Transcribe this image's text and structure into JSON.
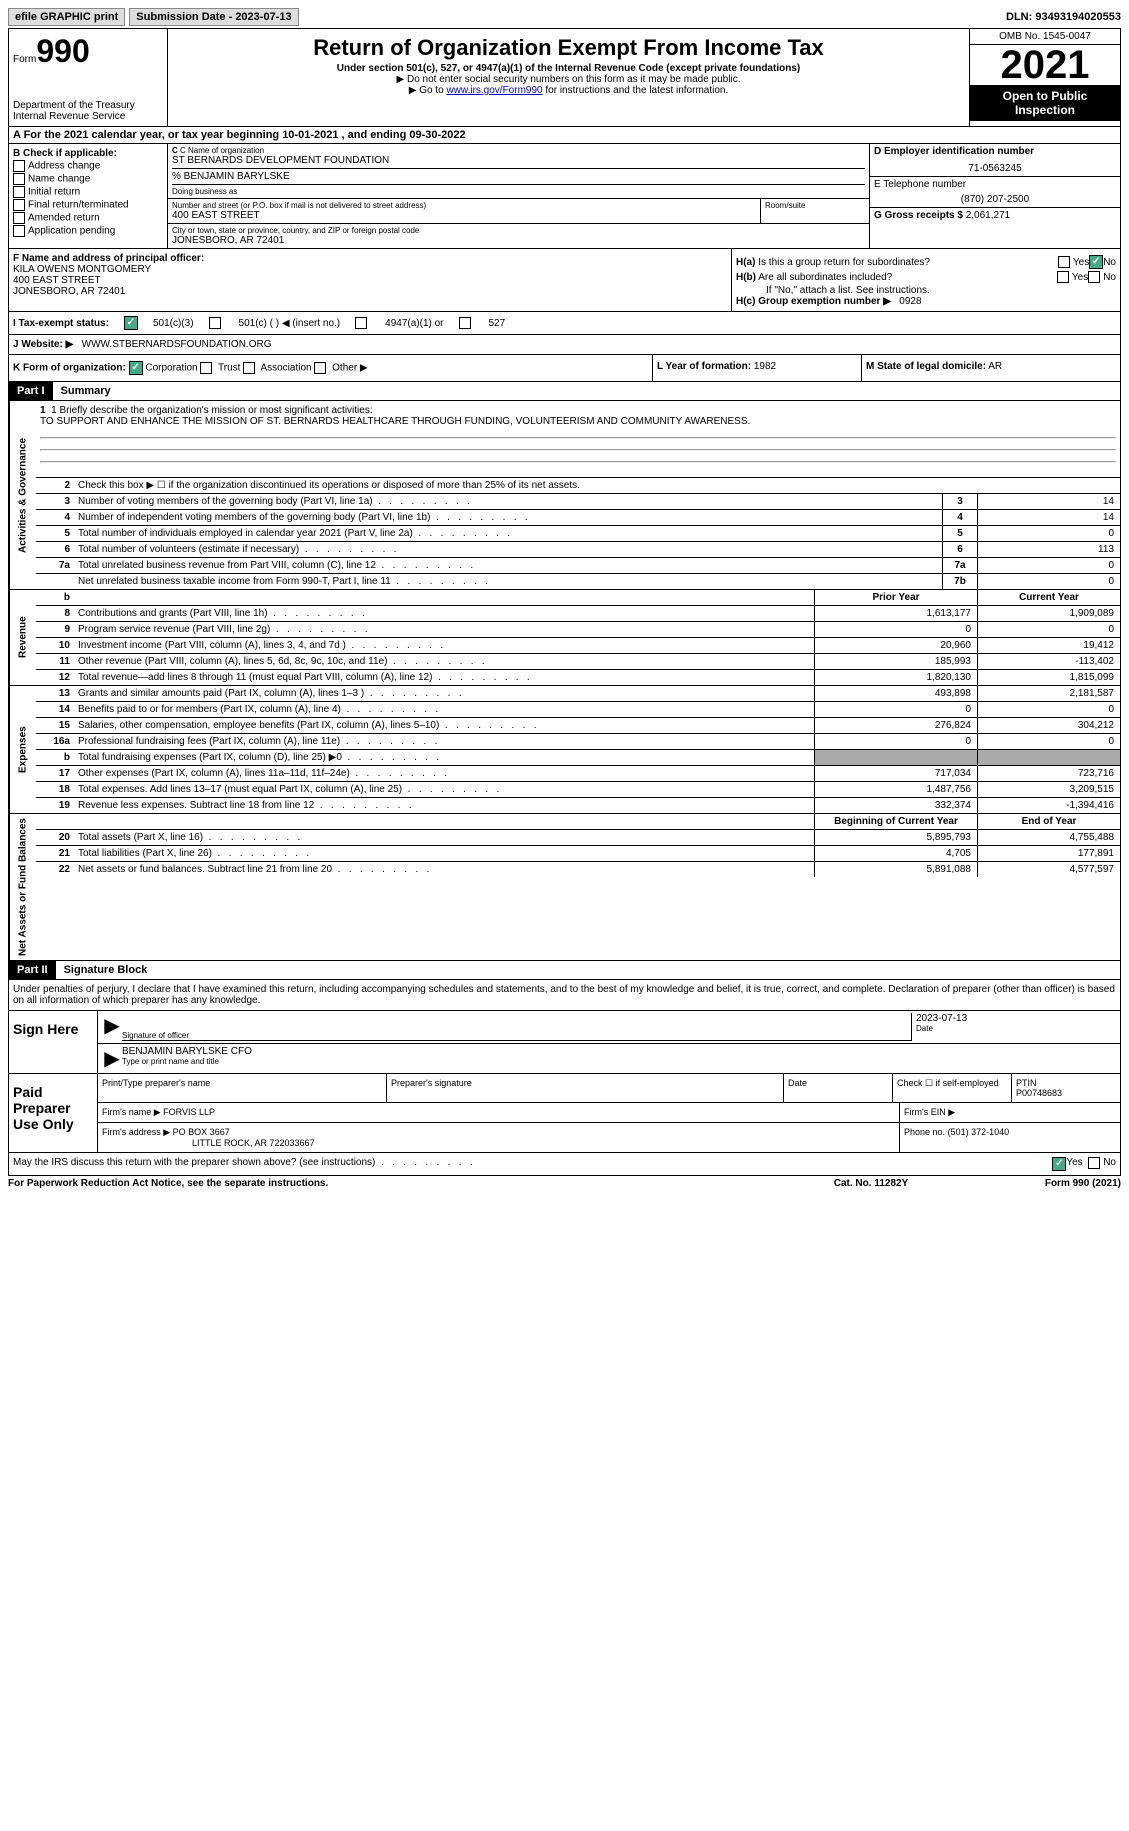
{
  "topbar": {
    "efile": "efile GRAPHIC print",
    "submission_label": "Submission Date - 2023-07-13",
    "dln": "DLN: 93493194020553"
  },
  "header": {
    "form_prefix": "Form",
    "form_num": "990",
    "dept": "Department of the Treasury\nInternal Revenue Service",
    "title": "Return of Organization Exempt From Income Tax",
    "subtitle": "Under section 501(c), 527, or 4947(a)(1) of the Internal Revenue Code (except private foundations)",
    "instr1": "▶ Do not enter social security numbers on this form as it may be made public.",
    "instr2_pre": "▶ Go to ",
    "instr2_link": "www.irs.gov/Form990",
    "instr2_post": " for instructions and the latest information.",
    "omb": "OMB No. 1545-0047",
    "year": "2021",
    "open_pub": "Open to Public Inspection"
  },
  "section_a": "A For the 2021 calendar year, or tax year beginning 10-01-2021    , and ending 09-30-2022",
  "box_b": {
    "label": "B Check if applicable:",
    "items": [
      "Address change",
      "Name change",
      "Initial return",
      "Final return/terminated",
      "Amended return",
      "Application pending"
    ]
  },
  "box_c": {
    "name_lab": "C Name of organization",
    "name": "ST BERNARDS DEVELOPMENT FOUNDATION",
    "care_of": "% BENJAMIN BARYLSKE",
    "dba_lab": "Doing business as",
    "addr_lab": "Number and street (or P.O. box if mail is not delivered to street address)",
    "addr": "400 EAST STREET",
    "room_lab": "Room/suite",
    "city_lab": "City or town, state or province, country, and ZIP or foreign postal code",
    "city": "JONESBORO, AR  72401"
  },
  "box_d": {
    "ein_lab": "D Employer identification number",
    "ein": "71-0563245",
    "phone_lab": "E Telephone number",
    "phone": "(870) 207-2500",
    "gross_lab": "G Gross receipts $",
    "gross": "2,061,271"
  },
  "box_f": {
    "lab": "F Name and address of principal officer:",
    "name": "KILA OWENS MONTGOMERY",
    "addr1": "400 EAST STREET",
    "addr2": "JONESBORO, AR  72401"
  },
  "box_h": {
    "ha": "H(a)  Is this a group return for subordinates?",
    "hb": "H(b)  Are all subordinates included?",
    "hb_note": "If \"No,\" attach a list. See instructions.",
    "hc": "H(c)  Group exemption number ▶",
    "hc_val": "0928",
    "yes": "Yes",
    "no": "No"
  },
  "box_i": {
    "lab": "I Tax-exempt status:",
    "opt1": "501(c)(3)",
    "opt2": "501(c) (  ) ◀ (insert no.)",
    "opt3": "4947(a)(1) or",
    "opt4": "527"
  },
  "box_j": {
    "lab": "J Website: ▶",
    "val": "WWW.STBERNARDSFOUNDATION.ORG"
  },
  "box_k": {
    "lab": "K Form of organization:",
    "opts": [
      "Corporation",
      "Trust",
      "Association",
      "Other ▶"
    ],
    "l_lab": "L Year of formation:",
    "l_val": "1982",
    "m_lab": "M State of legal domicile:",
    "m_val": "AR"
  },
  "part1": {
    "header": "Part I",
    "title": "Summary",
    "line1_lab": "1  Briefly describe the organization's mission or most significant activities:",
    "line1_val": "TO SUPPORT AND ENHANCE THE MISSION OF ST. BERNARDS HEALTHCARE THROUGH FUNDING, VOLUNTEERISM AND COMMUNITY AWARENESS.",
    "line2": "Check this box ▶ ☐ if the organization discontinued its operations or disposed of more than 25% of its net assets.",
    "governance": "Activities & Governance",
    "revenue": "Revenue",
    "expenses": "Expenses",
    "net": "Net Assets or Fund Balances",
    "prior": "Prior Year",
    "current": "Current Year",
    "beginning": "Beginning of Current Year",
    "end": "End of Year",
    "rows_gov": [
      {
        "n": "3",
        "d": "Number of voting members of the governing body (Part VI, line 1a)",
        "b": "3",
        "v": "14"
      },
      {
        "n": "4",
        "d": "Number of independent voting members of the governing body (Part VI, line 1b)",
        "b": "4",
        "v": "14"
      },
      {
        "n": "5",
        "d": "Total number of individuals employed in calendar year 2021 (Part V, line 2a)",
        "b": "5",
        "v": "0"
      },
      {
        "n": "6",
        "d": "Total number of volunteers (estimate if necessary)",
        "b": "6",
        "v": "113"
      },
      {
        "n": "7a",
        "d": "Total unrelated business revenue from Part VIII, column (C), line 12",
        "b": "7a",
        "v": "0"
      },
      {
        "n": "",
        "d": "Net unrelated business taxable income from Form 990-T, Part I, line 11",
        "b": "7b",
        "v": "0"
      }
    ],
    "rows_rev": [
      {
        "n": "8",
        "d": "Contributions and grants (Part VIII, line 1h)",
        "p": "1,613,177",
        "c": "1,909,089"
      },
      {
        "n": "9",
        "d": "Program service revenue (Part VIII, line 2g)",
        "p": "0",
        "c": "0"
      },
      {
        "n": "10",
        "d": "Investment income (Part VIII, column (A), lines 3, 4, and 7d )",
        "p": "20,960",
        "c": "19,412"
      },
      {
        "n": "11",
        "d": "Other revenue (Part VIII, column (A), lines 5, 6d, 8c, 9c, 10c, and 11e)",
        "p": "185,993",
        "c": "-113,402"
      },
      {
        "n": "12",
        "d": "Total revenue—add lines 8 through 11 (must equal Part VIII, column (A), line 12)",
        "p": "1,820,130",
        "c": "1,815,099"
      }
    ],
    "rows_exp": [
      {
        "n": "13",
        "d": "Grants and similar amounts paid (Part IX, column (A), lines 1–3 )",
        "p": "493,898",
        "c": "2,181,587"
      },
      {
        "n": "14",
        "d": "Benefits paid to or for members (Part IX, column (A), line 4)",
        "p": "0",
        "c": "0"
      },
      {
        "n": "15",
        "d": "Salaries, other compensation, employee benefits (Part IX, column (A), lines 5–10)",
        "p": "276,824",
        "c": "304,212"
      },
      {
        "n": "16a",
        "d": "Professional fundraising fees (Part IX, column (A), line 11e)",
        "p": "0",
        "c": "0"
      },
      {
        "n": "b",
        "d": "Total fundraising expenses (Part IX, column (D), line 25) ▶0",
        "p": "",
        "c": "",
        "shaded": true
      },
      {
        "n": "17",
        "d": "Other expenses (Part IX, column (A), lines 11a–11d, 11f–24e)",
        "p": "717,034",
        "c": "723,716"
      },
      {
        "n": "18",
        "d": "Total expenses. Add lines 13–17 (must equal Part IX, column (A), line 25)",
        "p": "1,487,756",
        "c": "3,209,515"
      },
      {
        "n": "19",
        "d": "Revenue less expenses. Subtract line 18 from line 12",
        "p": "332,374",
        "c": "-1,394,416"
      }
    ],
    "rows_net": [
      {
        "n": "20",
        "d": "Total assets (Part X, line 16)",
        "p": "5,895,793",
        "c": "4,755,488"
      },
      {
        "n": "21",
        "d": "Total liabilities (Part X, line 26)",
        "p": "4,705",
        "c": "177,891"
      },
      {
        "n": "22",
        "d": "Net assets or fund balances. Subtract line 21 from line 20",
        "p": "5,891,088",
        "c": "4,577,597"
      }
    ]
  },
  "part2": {
    "header": "Part II",
    "title": "Signature Block",
    "declaration": "Under penalties of perjury, I declare that I have examined this return, including accompanying schedules and statements, and to the best of my knowledge and belief, it is true, correct, and complete. Declaration of preparer (other than officer) is based on all information of which preparer has any knowledge.",
    "sign_here": "Sign Here",
    "sig_officer": "Signature of officer",
    "date_lab": "Date",
    "sig_date": "2023-07-13",
    "name_title": "BENJAMIN BARYLSKE CFO",
    "name_title_lab": "Type or print name and title",
    "paid": "Paid Preparer Use Only",
    "prep_name_lab": "Print/Type preparer's name",
    "prep_sig_lab": "Preparer's signature",
    "check_self": "Check ☐ if self-employed",
    "ptin_lab": "PTIN",
    "ptin": "P00748683",
    "firm_name_lab": "Firm's name   ▶",
    "firm_name": "FORVIS LLP",
    "firm_ein_lab": "Firm's EIN ▶",
    "firm_addr_lab": "Firm's address ▶",
    "firm_addr": "PO BOX 3667",
    "firm_addr2": "LITTLE ROCK, AR  722033667",
    "firm_phone_lab": "Phone no.",
    "firm_phone": "(501) 372-1040"
  },
  "footer": {
    "irs_q": "May the IRS discuss this return with the preparer shown above? (see instructions)",
    "paperwork": "For Paperwork Reduction Act Notice, see the separate instructions.",
    "cat": "Cat. No. 11282Y",
    "form": "Form 990 (2021)"
  }
}
